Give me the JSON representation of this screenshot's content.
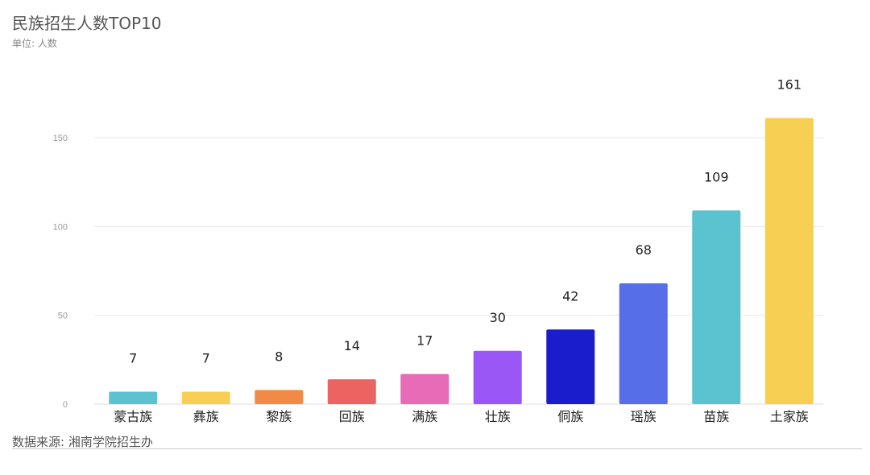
{
  "header": {
    "title": "民族招生人数TOP10",
    "subtitle": "单位: 人数"
  },
  "footer": {
    "source": "数据来源: 湘南学院招生办"
  },
  "chart_data": {
    "type": "bar",
    "title": "民族招生人数TOP10",
    "subtitle": "单位: 人数",
    "xlabel": "",
    "ylabel": "",
    "categories": [
      "蒙古族",
      "彝族",
      "黎族",
      "回族",
      "满族",
      "壮族",
      "侗族",
      "瑶族",
      "苗族",
      "土家族"
    ],
    "values": [
      7,
      7,
      8,
      14,
      17,
      30,
      42,
      68,
      109,
      161
    ],
    "colors": [
      "#5bc2cf",
      "#f7cf52",
      "#f08a44",
      "#ec6461",
      "#e86bb8",
      "#9b56f6",
      "#1a1dcb",
      "#566fe8",
      "#5bc2cf",
      "#f7cf52"
    ],
    "ylim": [
      0,
      161
    ],
    "yticks": [
      0,
      50,
      100,
      150
    ],
    "grid": true,
    "legend": "none"
  }
}
